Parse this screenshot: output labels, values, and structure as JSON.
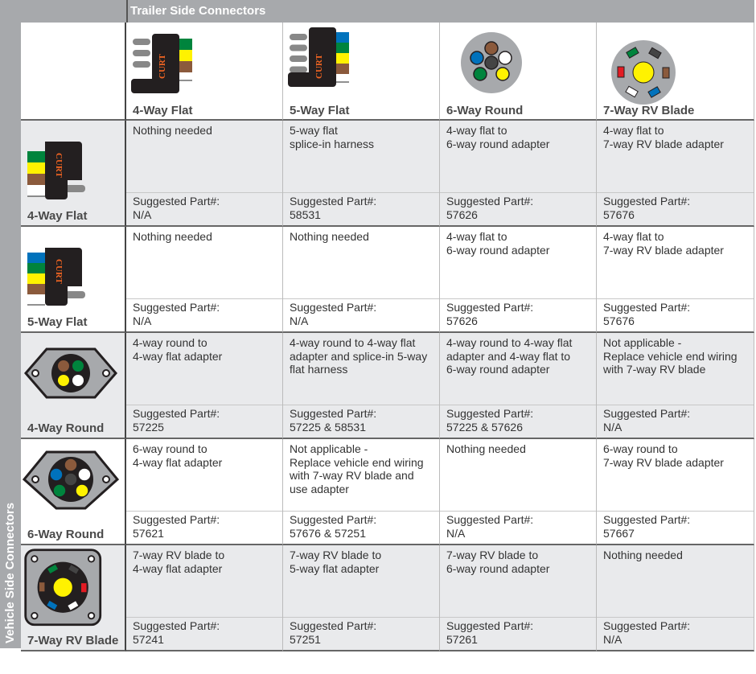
{
  "header": {
    "trailer_label": "Trailer Side Connectors",
    "vehicle_label": "Vehicle Side Connectors"
  },
  "brand_logo_text": "CURT",
  "columns": [
    {
      "label": "4-Way Flat",
      "icon": "4-way-flat-connector"
    },
    {
      "label": "5-Way Flat",
      "icon": "5-way-flat-connector"
    },
    {
      "label": "6-Way Round",
      "icon": "6-way-round-connector"
    },
    {
      "label": "7-Way RV Blade",
      "icon": "7-way-rv-blade-connector"
    }
  ],
  "part_label": "Suggested Part#:",
  "rows": [
    {
      "label": "4-Way Flat",
      "icon": "4-way-flat-connector",
      "cells": [
        {
          "desc": "Nothing needed",
          "part": "N/A"
        },
        {
          "desc": "5-way flat\nsplice-in harness",
          "part": "58531"
        },
        {
          "desc": "4-way flat to\n6-way round adapter",
          "part": "57626"
        },
        {
          "desc": "4-way flat to\n7-way RV blade adapter",
          "part": "57676"
        }
      ]
    },
    {
      "label": "5-Way Flat",
      "icon": "5-way-flat-connector",
      "cells": [
        {
          "desc": "Nothing needed",
          "part": "N/A"
        },
        {
          "desc": "Nothing needed",
          "part": "N/A"
        },
        {
          "desc": "4-way flat to\n6-way round adapter",
          "part": "57626"
        },
        {
          "desc": "4-way flat to\n7-way RV blade adapter",
          "part": "57676"
        }
      ]
    },
    {
      "label": "4-Way Round",
      "icon": "4-way-round-connector",
      "cells": [
        {
          "desc": "4-way round to\n4-way flat adapter",
          "part": "57225"
        },
        {
          "desc": "4-way round to 4-way flat\nadapter and splice-in 5-way\nflat harness",
          "part": "57225 & 58531"
        },
        {
          "desc": "4-way round to 4-way flat\nadapter and 4-way flat to\n6-way round adapter",
          "part": "57225 & 57626"
        },
        {
          "desc": "Not applicable -\nReplace vehicle end wiring\nwith 7-way RV blade",
          "part": "N/A"
        }
      ]
    },
    {
      "label": "6-Way Round",
      "icon": "6-way-round-connector",
      "cells": [
        {
          "desc": "6-way round to\n4-way flat adapter",
          "part": "57621"
        },
        {
          "desc": "Not applicable -\nReplace vehicle end wiring\nwith 7-way RV blade and\nuse adapter",
          "part": "57676 & 57251"
        },
        {
          "desc": "Nothing needed",
          "part": "N/A"
        },
        {
          "desc": "6-way round to\n7-way RV blade adapter",
          "part": "57667"
        }
      ]
    },
    {
      "label": "7-Way RV Blade",
      "icon": "7-way-rv-blade-connector",
      "cells": [
        {
          "desc": "7-way RV blade to\n4-way flat adapter",
          "part": "57241"
        },
        {
          "desc": "7-way RV blade to\n5-way flat adapter",
          "part": "57251"
        },
        {
          "desc": "7-way RV blade to\n6-way round adapter",
          "part": "57261"
        },
        {
          "desc": "Nothing needed",
          "part": "N/A"
        }
      ]
    }
  ],
  "colors": {
    "bar": "#a7a9ac",
    "row_alt": "#e9eaec",
    "logo": "#f26522"
  }
}
